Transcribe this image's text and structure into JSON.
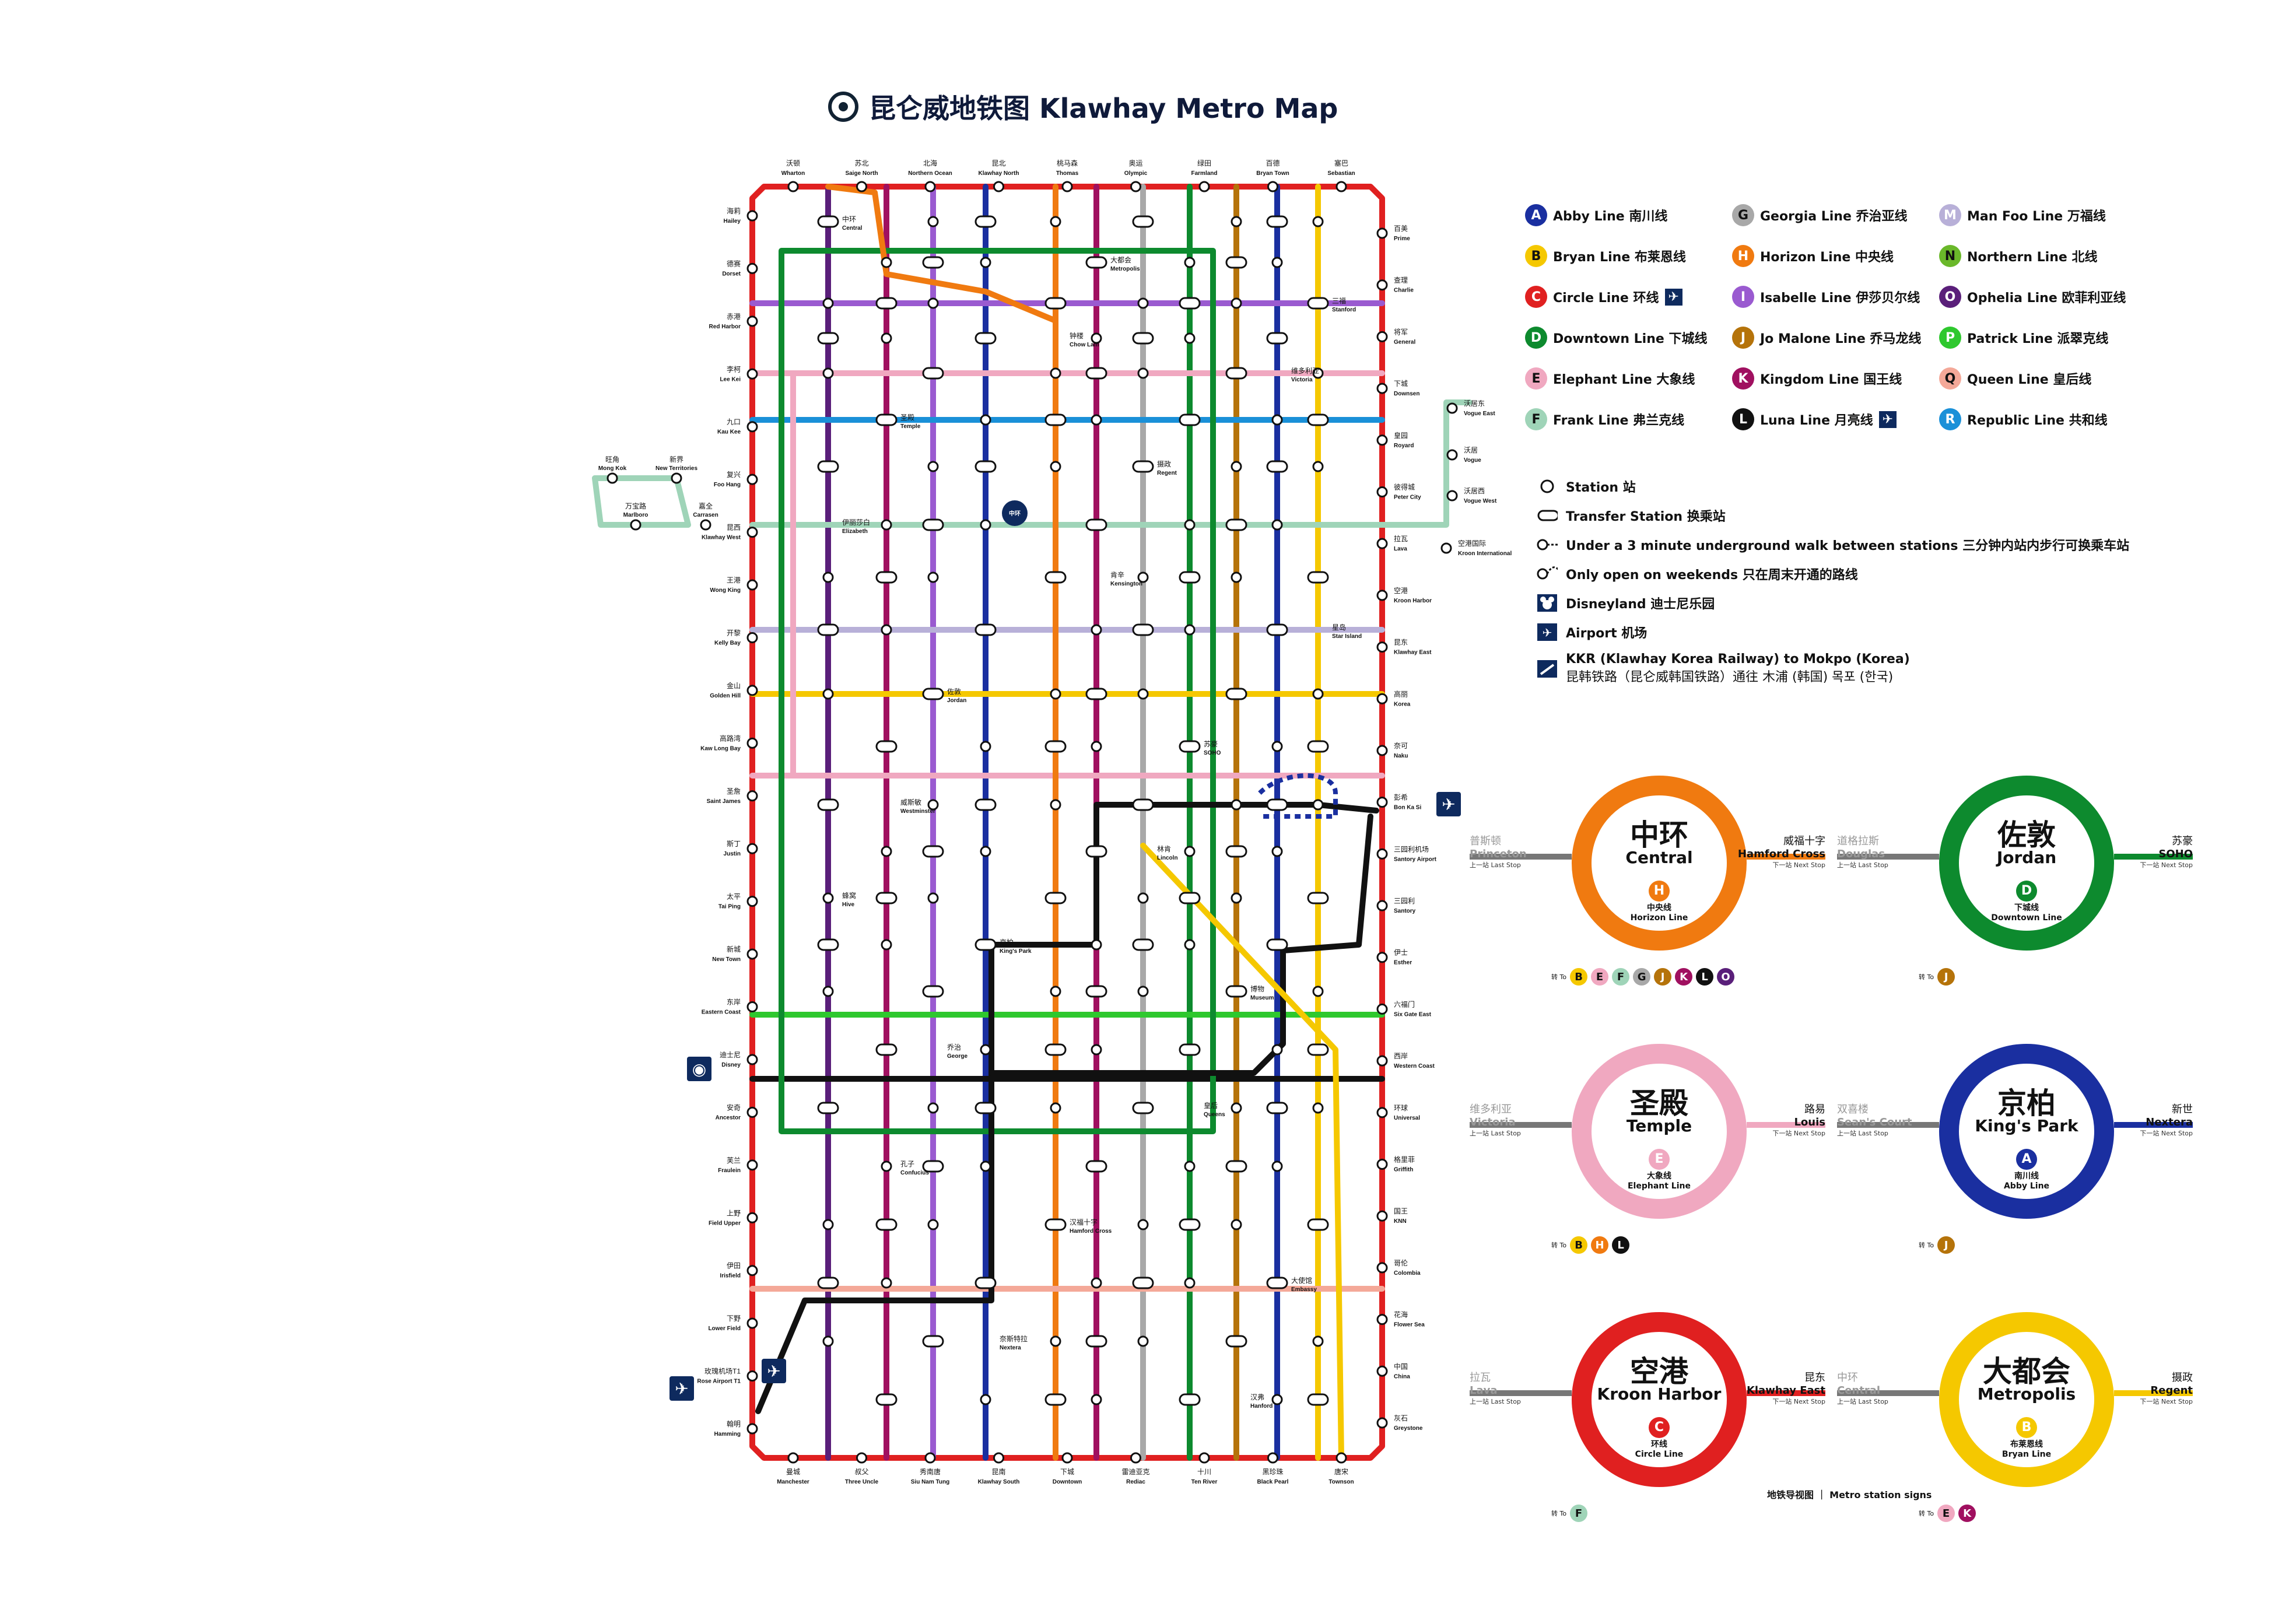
{
  "title": "昆仑威地铁图 Klawhay Metro Map",
  "lines": [
    {
      "code": "A",
      "name": "Abby Line 南川线",
      "color": "#1a2fa0"
    },
    {
      "code": "B",
      "name": "Bryan Line 布莱恩线",
      "color": "#f5c800"
    },
    {
      "code": "C",
      "name": "Circle Line 环线",
      "color": "#e02020",
      "airport": true
    },
    {
      "code": "D",
      "name": "Downtown Line 下城线",
      "color": "#0d8a2e"
    },
    {
      "code": "E",
      "name": "Elephant Line 大象线",
      "color": "#f0a8c0"
    },
    {
      "code": "F",
      "name": "Frank Line 弗兰克线",
      "color": "#9fd4b8"
    },
    {
      "code": "G",
      "name": "Georgia Line 乔治亚线",
      "color": "#a8a8a8"
    },
    {
      "code": "H",
      "name": "Horizon Line 中央线",
      "color": "#f07a10"
    },
    {
      "code": "I",
      "name": "Isabelle Line 伊莎贝尔线",
      "color": "#9a5ad0"
    },
    {
      "code": "J",
      "name": "Jo Malone Line 乔马龙线",
      "color": "#b5730a"
    },
    {
      "code": "K",
      "name": "Kingdom Line 国王线",
      "color": "#a01060"
    },
    {
      "code": "L",
      "name": "Luna Line 月亮线",
      "color": "#111111",
      "airport": true,
      "express": "Express"
    },
    {
      "code": "M",
      "name": "Man Foo Line 万福线",
      "color": "#b8b0d8"
    },
    {
      "code": "N",
      "name": "Northern Line 北线",
      "color": "#6ab82a"
    },
    {
      "code": "O",
      "name": "Ophelia Line 欧菲利亚线",
      "color": "#5a1f7a"
    },
    {
      "code": "P",
      "name": "Patrick Line 派翠克线",
      "color": "#2ec82e"
    },
    {
      "code": "Q",
      "name": "Queen Line 皇后线",
      "color": "#f4a898"
    },
    {
      "code": "R",
      "name": "Republic Line 共和线",
      "color": "#1a90d8"
    }
  ],
  "key": [
    {
      "icon": "station",
      "label": "Station 站"
    },
    {
      "icon": "transfer",
      "label": "Transfer Station 换乘站"
    },
    {
      "icon": "walk",
      "label": "Under a 3 minute underground walk between stations 三分钟内站内步行可换乘车站"
    },
    {
      "icon": "weekend",
      "label": "Only open on weekends 只在周末开通的路线"
    },
    {
      "icon": "disney",
      "label": "Disneyland 迪士尼乐园"
    },
    {
      "icon": "airport",
      "label": "Airport 机场"
    },
    {
      "icon": "kkr",
      "label": "KKR (Klawhay Korea Railway) to Mokpo (Korea)",
      "label2": "昆韩铁路（昆仑威韩国铁路）通往 木浦 (韩国) 목포 (한국)"
    }
  ],
  "top_stations": [
    {
      "cn": "沃顿",
      "en": "Wharton"
    },
    {
      "cn": "苏北",
      "en": "Saige North"
    },
    {
      "cn": "北海",
      "en": "Northern Ocean"
    },
    {
      "cn": "昆北",
      "en": "Klawhay North"
    },
    {
      "cn": "桃马森",
      "en": "Thomas"
    },
    {
      "cn": "奥运",
      "en": "Olympic"
    },
    {
      "cn": "绿田",
      "en": "Farmland"
    },
    {
      "cn": "百德",
      "en": "Bryan Town"
    },
    {
      "cn": "塞巴",
      "en": "Sebastian"
    }
  ],
  "bottom_stations": [
    {
      "cn": "曼城",
      "en": "Manchester"
    },
    {
      "cn": "叔父",
      "en": "Three Uncle"
    },
    {
      "cn": "秀南唐",
      "en": "Siu Nam Tung"
    },
    {
      "cn": "昆南",
      "en": "Klawhay South"
    },
    {
      "cn": "下城",
      "en": "Downtown"
    },
    {
      "cn": "雷迪亚克",
      "en": "Rediac"
    },
    {
      "cn": "十川",
      "en": "Ten River"
    },
    {
      "cn": "黑珍珠",
      "en": "Black Pearl"
    },
    {
      "cn": "唐宋",
      "en": "Townson"
    }
  ],
  "left_stations": [
    {
      "cn": "海莉",
      "en": "Hailey"
    },
    {
      "cn": "德赛",
      "en": "Dorset"
    },
    {
      "cn": "赤港",
      "en": "Red Harbor"
    },
    {
      "cn": "李柯",
      "en": "Lee Kei"
    },
    {
      "cn": "九口",
      "en": "Kau Kee"
    },
    {
      "cn": "复兴",
      "en": "Foo Hang"
    },
    {
      "cn": "昆西",
      "en": "Klawhay West"
    },
    {
      "cn": "王港",
      "en": "Wong King"
    },
    {
      "cn": "开黎",
      "en": "Kelly Bay"
    },
    {
      "cn": "金山",
      "en": "Golden Hill"
    },
    {
      "cn": "高路湾",
      "en": "Kaw Long Bay"
    },
    {
      "cn": "圣詹",
      "en": "Saint James"
    },
    {
      "cn": "斯丁",
      "en": "Justin"
    },
    {
      "cn": "太平",
      "en": "Tai Ping"
    },
    {
      "cn": "新城",
      "en": "New Town"
    },
    {
      "cn": "东岸",
      "en": "Eastern Coast"
    },
    {
      "cn": "迪士尼",
      "en": "Disney"
    },
    {
      "cn": "安奇",
      "en": "Ancestor"
    },
    {
      "cn": "芙兰",
      "en": "Fraulein"
    },
    {
      "cn": "上野",
      "en": "Field Upper"
    },
    {
      "cn": "伊田",
      "en": "Irisfield"
    },
    {
      "cn": "下野",
      "en": "Lower Field"
    },
    {
      "cn": "玫瑰机场T1",
      "en": "Rose Airport T1"
    },
    {
      "cn": "翰明",
      "en": "Hamming"
    }
  ],
  "right_stations": [
    {
      "cn": "百美",
      "en": "Prime"
    },
    {
      "cn": "查理",
      "en": "Charlie"
    },
    {
      "cn": "将军",
      "en": "General"
    },
    {
      "cn": "下城",
      "en": "Downsen"
    },
    {
      "cn": "皇园",
      "en": "Royard"
    },
    {
      "cn": "彼得城",
      "en": "Peter City"
    },
    {
      "cn": "拉瓦",
      "en": "Lava"
    },
    {
      "cn": "空港",
      "en": "Kroon Harbor"
    },
    {
      "cn": "昆东",
      "en": "Klawhay East"
    },
    {
      "cn": "高丽",
      "en": "Korea"
    },
    {
      "cn": "奈可",
      "en": "Naku"
    },
    {
      "cn": "彭希",
      "en": "Bon Ka Si"
    },
    {
      "cn": "三园利机场",
      "en": "Santory Airport"
    },
    {
      "cn": "三园利",
      "en": "Santory"
    },
    {
      "cn": "伊士",
      "en": "Esther"
    },
    {
      "cn": "六福门",
      "en": "Six Gate East"
    },
    {
      "cn": "西岸",
      "en": "Western Coast"
    },
    {
      "cn": "环球",
      "en": "Universal"
    },
    {
      "cn": "格里菲",
      "en": "Griffith"
    },
    {
      "cn": "国王",
      "en": "KNN"
    },
    {
      "cn": "哥伦",
      "en": "Colombia"
    },
    {
      "cn": "花海",
      "en": "Flower Sea"
    },
    {
      "cn": "中国",
      "en": "China"
    },
    {
      "cn": "灰石",
      "en": "Greystone"
    }
  ],
  "left_extra": [
    {
      "cn": "旺角",
      "en": "Mong Kok"
    },
    {
      "cn": "新界",
      "en": "New Territories"
    },
    {
      "cn": "万宝路",
      "en": "Marlboro"
    },
    {
      "cn": "嘉全",
      "en": "Carrasen"
    }
  ],
  "right_extra": [
    {
      "cn": "沃居东",
      "en": "Vogue East"
    },
    {
      "cn": "沃居",
      "en": "Vogue"
    },
    {
      "cn": "沃居西",
      "en": "Vogue West"
    },
    {
      "cn": "空港国际",
      "en": "Kroon International"
    }
  ],
  "inner_labels": [
    {
      "cn": "中环",
      "en": "Central"
    },
    {
      "cn": "圣殿",
      "en": "Temple"
    },
    {
      "cn": "佐敦",
      "en": "Jordan"
    },
    {
      "cn": "京柏",
      "en": "King's Park"
    },
    {
      "cn": "汉福十字",
      "en": "Hamford Cross"
    },
    {
      "cn": "大都会",
      "en": "Metropolis"
    },
    {
      "cn": "摄政",
      "en": "Regent"
    },
    {
      "cn": "苏豪",
      "en": "SOHO"
    },
    {
      "cn": "博物",
      "en": "Museum"
    },
    {
      "cn": "大使馆",
      "en": "Embassy"
    },
    {
      "cn": "三福",
      "en": "Stanford"
    },
    {
      "cn": "伊丽莎白",
      "en": "Elizabeth"
    },
    {
      "cn": "威斯敏",
      "en": "Westminster"
    },
    {
      "cn": "乔治",
      "en": "George"
    },
    {
      "cn": "奈斯特拉",
      "en": "Nextera"
    },
    {
      "cn": "钟楼",
      "en": "Chow Lam"
    },
    {
      "cn": "肯辛",
      "en": "Kensington"
    },
    {
      "cn": "林肯",
      "en": "Lincoln"
    },
    {
      "cn": "皇后",
      "en": "Queens"
    },
    {
      "cn": "汉弗",
      "en": "Hanford"
    },
    {
      "cn": "维多利亚",
      "en": "Victoria"
    },
    {
      "cn": "星岛",
      "en": "Star Island"
    },
    {
      "cn": "蜂窝",
      "en": "Hive"
    },
    {
      "cn": "孔子",
      "en": "Confucius"
    }
  ],
  "signs": [
    {
      "cn": "中环",
      "en": "Central",
      "ring": "#f07a10",
      "badge": "H",
      "badge_color": "#f07a10",
      "line_cn": "中央线",
      "line_en": "Horizon Line",
      "prev_cn": "普斯顿",
      "prev_en": "Princeton",
      "prev_note": "上一站 Last Stop",
      "next_cn": "威福十字",
      "next_en": "Hamford Cross",
      "next_note": "下一站 Next Stop",
      "transfer_label": "转 To",
      "transfers": [
        {
          "c": "B",
          "color": "#f5c800"
        },
        {
          "c": "E",
          "color": "#f0a8c0"
        },
        {
          "c": "F",
          "color": "#9fd4b8"
        },
        {
          "c": "G",
          "color": "#a8a8a8"
        },
        {
          "c": "J",
          "color": "#b5730a"
        },
        {
          "c": "K",
          "color": "#a01060"
        },
        {
          "c": "L",
          "color": "#111111"
        },
        {
          "c": "O",
          "color": "#5a1f7a"
        }
      ]
    },
    {
      "cn": "佐敦",
      "en": "Jordan",
      "ring": "#0d8a2e",
      "badge": "D",
      "badge_color": "#0d8a2e",
      "line_cn": "下城线",
      "line_en": "Downtown Line",
      "prev_cn": "道格拉斯",
      "prev_en": "Douglas",
      "prev_note": "上一站 Last Stop",
      "next_cn": "苏豪",
      "next_en": "SOHO",
      "next_note": "下一站 Next Stop",
      "transfer_label": "转 To",
      "transfers": [
        {
          "c": "J",
          "color": "#b5730a"
        }
      ]
    },
    {
      "cn": "圣殿",
      "en": "Temple",
      "ring": "#f0a8c0",
      "badge": "E",
      "badge_color": "#f0a8c0",
      "line_cn": "大象线",
      "line_en": "Elephant Line",
      "prev_cn": "维多利亚",
      "prev_en": "Victoria",
      "prev_note": "上一站 Last Stop",
      "next_cn": "路易",
      "next_en": "Louis",
      "next_note": "下一站 Next Stop",
      "transfer_label": "转 To",
      "transfers": [
        {
          "c": "B",
          "color": "#f5c800"
        },
        {
          "c": "H",
          "color": "#f07a10"
        },
        {
          "c": "L",
          "color": "#111111"
        }
      ]
    },
    {
      "cn": "京柏",
      "en": "King's Park",
      "ring": "#1a2fa0",
      "badge": "A",
      "badge_color": "#1a2fa0",
      "line_cn": "南川线",
      "line_en": "Abby Line",
      "prev_cn": "双喜楼",
      "prev_en": "Sean's Court",
      "prev_note": "上一站 Last Stop",
      "next_cn": "新世",
      "next_en": "Nextera",
      "next_note": "下一站 Next Stop",
      "transfer_label": "转 To",
      "transfers": [
        {
          "c": "J",
          "color": "#b5730a"
        }
      ]
    },
    {
      "cn": "空港",
      "en": "Kroon Harbor",
      "ring": "#e02020",
      "badge": "C",
      "badge_color": "#e02020",
      "line_cn": "环线",
      "line_en": "Circle Line",
      "prev_cn": "拉瓦",
      "prev_en": "Lava",
      "prev_note": "上一站 Last Stop",
      "next_cn": "昆东",
      "next_en": "Klawhay East",
      "next_note": "下一站 Next Stop",
      "transfer_label": "转 To",
      "transfers": [
        {
          "c": "F",
          "color": "#9fd4b8"
        }
      ]
    },
    {
      "cn": "大都会",
      "en": "Metropolis",
      "ring": "#f5c800",
      "badge": "B",
      "badge_color": "#f5c800",
      "line_cn": "布莱恩线",
      "line_en": "Bryan Line",
      "prev_cn": "中环",
      "prev_en": "Central",
      "prev_note": "上一站 Last Stop",
      "next_cn": "摄政",
      "next_en": "Regent",
      "next_note": "下一站 Next Stop",
      "transfer_label": "转 To",
      "transfers": [
        {
          "c": "E",
          "color": "#f0a8c0"
        },
        {
          "c": "K",
          "color": "#a01060"
        }
      ]
    }
  ],
  "signs_caption": "地铁导视图 ｜ Metro station signs"
}
